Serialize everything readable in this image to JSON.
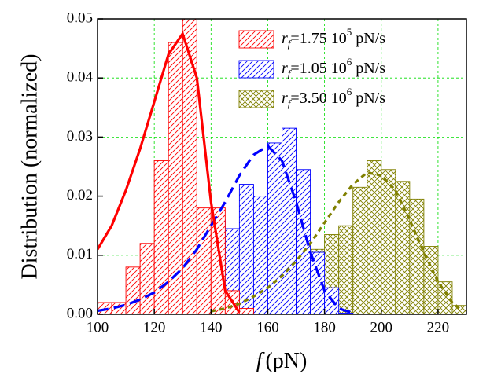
{
  "chart_data": {
    "type": "histogram",
    "x_label": {
      "symbol": "f",
      "text": "(pN)"
    },
    "y_label": "Distribution (normalized)",
    "xlim": [
      100,
      230
    ],
    "ylim": [
      0,
      0.05
    ],
    "xticks": [
      100,
      120,
      140,
      160,
      180,
      200,
      220
    ],
    "yticks": [
      {
        "value": 0,
        "label": "0.00"
      },
      {
        "value": 0.01,
        "label": "0.01"
      },
      {
        "value": 0.02,
        "label": "0.02"
      },
      {
        "value": 0.03,
        "label": "0.03"
      },
      {
        "value": 0.04,
        "label": "0.04"
      },
      {
        "value": 0.05,
        "label": "0.05"
      }
    ],
    "grid": true,
    "legend_position": "top-right",
    "bins": [
      100,
      105,
      110,
      115,
      120,
      125,
      130,
      135,
      140,
      145,
      150,
      155,
      160,
      165,
      170,
      175,
      180,
      185,
      190,
      195,
      200,
      205,
      210,
      215,
      220,
      225,
      230
    ],
    "series": [
      {
        "label": {
          "symbol": "r",
          "subscript": "f",
          "text": "=1.75 10",
          "superscript": "5",
          "unit": " pN/s"
        },
        "color": "#ff0000",
        "pattern": "hatch",
        "values": [
          0.002,
          0.002,
          0.008,
          0.012,
          0.026,
          0.046,
          0.05,
          0.018,
          0.018,
          0.004,
          0.001,
          0,
          0,
          0,
          0,
          0,
          0,
          0,
          0,
          0,
          0,
          0,
          0,
          0,
          0,
          0
        ],
        "curve": {
          "style": "solid",
          "x": [
            100,
            105,
            110,
            115,
            120,
            125,
            130,
            135,
            140,
            145,
            150
          ],
          "values": [
            0.011,
            0.015,
            0.021,
            0.028,
            0.036,
            0.044,
            0.0475,
            0.04,
            0.019,
            0.004,
            0.0003
          ]
        }
      },
      {
        "label": {
          "symbol": "r",
          "subscript": "f",
          "text": "=1.05 10",
          "superscript": "6",
          "unit": " pN/s"
        },
        "color": "#0000ff",
        "pattern": "hatch",
        "values": [
          0.0015,
          0.002,
          0.001,
          0.0003,
          0.002,
          0.0075,
          0.0135,
          0.017,
          0.016,
          0.0145,
          0.022,
          0.02,
          0.029,
          0.0315,
          0.0245,
          0.0105,
          0.0045,
          0.0002,
          0,
          0,
          0,
          0,
          0,
          0,
          0,
          0
        ],
        "curve": {
          "style": "dashed",
          "x": [
            100,
            105,
            110,
            115,
            120,
            125,
            130,
            135,
            140,
            145,
            150,
            155,
            160,
            165,
            170,
            175,
            180,
            185,
            190
          ],
          "values": [
            0.0006,
            0.001,
            0.0016,
            0.0025,
            0.0037,
            0.0055,
            0.0078,
            0.011,
            0.015,
            0.019,
            0.0235,
            0.027,
            0.0285,
            0.026,
            0.019,
            0.0105,
            0.004,
            0.001,
            0.0002
          ]
        }
      },
      {
        "label": {
          "symbol": "r",
          "subscript": "f",
          "text": "=3.50 10",
          "superscript": "6",
          "unit": " pN/s"
        },
        "color": "#808000",
        "pattern": "cross",
        "values": [
          0,
          0,
          0,
          0,
          0,
          0,
          0,
          0,
          0.0015,
          0.002,
          0.002,
          0.003,
          0.0045,
          0.007,
          0.0105,
          0.011,
          0.0135,
          0.015,
          0.0215,
          0.026,
          0.0245,
          0.0225,
          0.0195,
          0.0115,
          0.0055,
          0.0015
        ],
        "curve": {
          "style": "dotted",
          "x": [
            140,
            145,
            150,
            155,
            160,
            165,
            170,
            175,
            180,
            185,
            190,
            195,
            200,
            205,
            210,
            215,
            220,
            225,
            228
          ],
          "values": [
            0.0005,
            0.001,
            0.0018,
            0.003,
            0.0045,
            0.0065,
            0.009,
            0.012,
            0.0155,
            0.019,
            0.022,
            0.024,
            0.0235,
            0.021,
            0.016,
            0.0105,
            0.0055,
            0.002,
            0.0008
          ]
        }
      }
    ]
  }
}
